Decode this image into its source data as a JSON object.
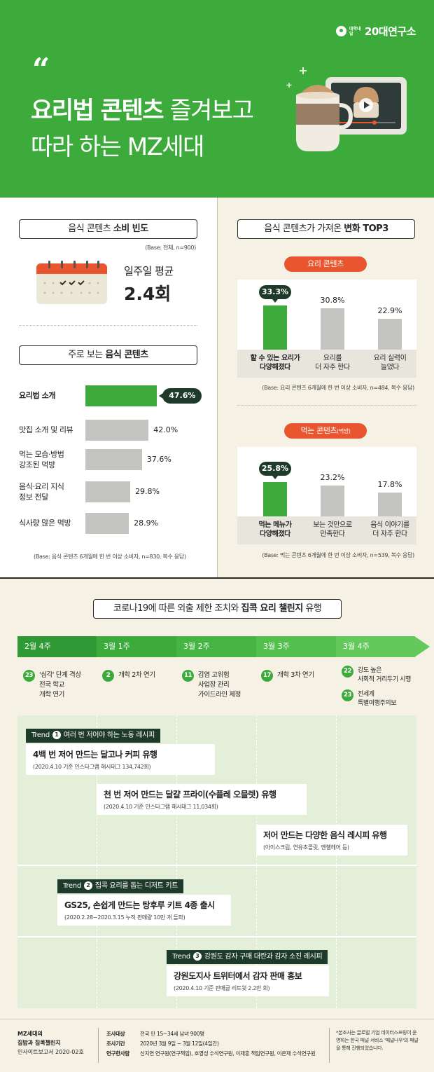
{
  "header": {
    "brand_small": "대학내일",
    "brand_big": "20대연구소",
    "quote_mark": "“",
    "title_bold": "요리법 콘텐츠",
    "title_rest": " 즐겨보고",
    "title_line2": "따라 하는 MZ세대"
  },
  "frequency": {
    "title_pre": "음식 콘텐츠 ",
    "title_bold": "소비 빈도",
    "base": "(Base: 전체, n=900)",
    "label": "일주일 평균",
    "value": "2.4회"
  },
  "chart_data": [
    {
      "type": "bar",
      "orientation": "horizontal",
      "title_pre": "주로 보는 ",
      "title_bold": "음식 콘텐츠",
      "categories": [
        "요리법 소개",
        "맛집 소개 및 리뷰",
        "먹는 모습·방법\n강조된 먹방",
        "음식·요리 지식\n정보 전달",
        "식사량 많은 먹방"
      ],
      "values": [
        47.6,
        42.0,
        37.6,
        29.8,
        28.9
      ],
      "value_labels": [
        "47.6%",
        "42.0%",
        "37.6%",
        "29.8%",
        "28.9%"
      ],
      "highlight_index": 0,
      "base": "(Base: 음식 콘텐츠 6개월에 한 번 이상 소비자, n=830, 복수 응답)",
      "colors": {
        "highlight": "#3daa3c",
        "normal": "#c4c4c0"
      }
    },
    {
      "type": "bar",
      "section_title_pre": "음식 콘텐츠가 가져온 ",
      "section_title_bold": "변화 TOP3",
      "pill": "요리 콘텐츠",
      "pill_sub": "",
      "categories": [
        "할 수 있는 요리가\n다양해졌다",
        "요리를\n더 자주 한다",
        "요리 실력이\n늘었다"
      ],
      "values": [
        33.3,
        30.8,
        22.9
      ],
      "value_labels": [
        "33.3%",
        "30.8%",
        "22.9%"
      ],
      "highlight_index": 0,
      "base": "(Base: 요리 콘텐츠 6개월에 한 번 이상 소비자, n=484, 복수 응답)"
    },
    {
      "type": "bar",
      "pill": "먹는 콘텐츠",
      "pill_sub": "(먹방)",
      "categories": [
        "먹는 메뉴가\n다양해졌다",
        "보는 것만으로\n만족한다",
        "음식 이야기를\n더 자주 한다"
      ],
      "values": [
        25.8,
        23.2,
        17.8
      ],
      "value_labels": [
        "25.8%",
        "23.2%",
        "17.8%"
      ],
      "highlight_index": 0,
      "base": "(Base: 먹는 콘텐츠 6개월에 한 번 이상 소비자, n=539, 복수 응답)"
    }
  ],
  "timeline": {
    "title_pre": "코로나19에 따른 외출 제한 조치와 ",
    "title_bold": "집콕 요리 챌린지",
    "title_post": " 유행",
    "weeks": [
      "2월 4주",
      "3월 1주",
      "3월 2주",
      "3월 3주",
      "3월 4주"
    ],
    "events": [
      {
        "num": "23",
        "text": "'심각' 단계 격상\n전국 학교\n개학 연기"
      },
      {
        "num": "2",
        "text": "개학 2차 연기"
      },
      {
        "num": "11",
        "text": "감염 고위험\n사업장 관리\n가이드라인 제정"
      },
      {
        "num": "17",
        "text": "개학 3차 연기"
      },
      {
        "num": "22",
        "text": "강도 높은\n사회적 거리두기 시행"
      },
      {
        "num": "23",
        "text": "전세계\n특별여행주의보"
      }
    ],
    "trend_word": "Trend",
    "trends": [
      {
        "num": "1",
        "label": "여러 번 저어야 하는 노동 레시피"
      },
      {
        "num": "2",
        "label": "집콕 요리를 돕는 디저트 키트"
      },
      {
        "num": "3",
        "label": "강원도 감자 구매 대란과 감자 소진 레시피"
      }
    ],
    "cards": [
      {
        "title": "4백 번 저어 만드는 달고나 커피 유행",
        "sub": "(2020.4.10 기준 인스타그램 해시태그 134,742회)"
      },
      {
        "title": "천 번 저어 만드는 달걀 프라이(수플레 오믈렛) 유행",
        "sub": "(2020.4.10 기준 인스타그램 해시태그 11,034회)"
      },
      {
        "title": "저어 만드는 다양한 음식 레시피 유행",
        "sub": "(아이스크림, 연유초콜릿, 옌첼헤어 등)"
      },
      {
        "title": "GS25, 손쉽게 만드는 탕후루 키트 4종 출시",
        "sub": "(2020.2.28~2020.3.15 누적 판매량 10만 개 돌파)"
      },
      {
        "title": "강원도지사 트위터에서 감자 판매 홍보",
        "sub": "(2020.4.10 기준 판매글 리트윗 2.2만 회)"
      }
    ]
  },
  "footer": {
    "left_line1": "MZ세대의",
    "left_line2": "집밥과 집콕챌린지",
    "left_line3": "인사이트보고서 2020-02호",
    "rows": [
      {
        "k": "조사대상",
        "v": "전국 만 15~34세 남녀 900명"
      },
      {
        "k": "조사기간",
        "v": "2020년 3월 9일 ~ 3월 12일(4일간)"
      },
      {
        "k": "연구한사람",
        "v": "신지연 연구원(연구책임), 호영성 수석연구원, 이재훈 책임연구원, 이은재 수석연구원"
      }
    ],
    "note": "*본조사는 글로벌 기업 데이터스프링이 운영하는 한국 패널 서비스 '패널나우'의 패널을 통해 진행되었습니다."
  },
  "colors": {
    "green": "#3daa3c",
    "dark": "#1e3a2a",
    "orange": "#e8552f",
    "gray_bar": "#c4c4c0"
  }
}
